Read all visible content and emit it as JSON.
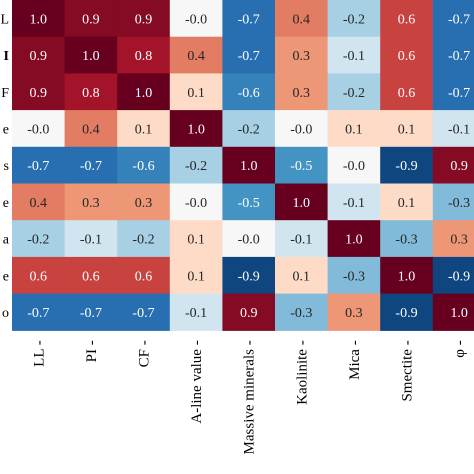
{
  "chart_data": {
    "type": "heatmap",
    "x_labels": [
      "LL",
      "PI",
      "CF",
      "A-line value",
      "Massive minerals",
      "Kaolinite",
      "Mica",
      "Smectite",
      "φ"
    ],
    "y_labels": [
      "LL",
      "PI",
      "CF",
      "A-line value",
      "Massive minerals",
      "Kaolinite",
      "Mica",
      "Smectite",
      "φ"
    ],
    "y_labels_visible_fragments": [
      "L",
      "I",
      "F",
      "e",
      "s",
      "e",
      "a",
      "e",
      "o"
    ],
    "values": [
      [
        1.0,
        0.9,
        0.9,
        -0.0,
        -0.7,
        0.4,
        -0.2,
        0.6,
        -0.7
      ],
      [
        0.9,
        1.0,
        0.8,
        0.4,
        -0.7,
        0.3,
        -0.1,
        0.6,
        -0.7
      ],
      [
        0.9,
        0.8,
        1.0,
        0.1,
        -0.6,
        0.3,
        -0.2,
        0.6,
        -0.7
      ],
      [
        -0.0,
        0.4,
        0.1,
        1.0,
        -0.2,
        -0.0,
        0.1,
        0.1,
        -0.1
      ],
      [
        -0.7,
        -0.7,
        -0.6,
        -0.2,
        1.0,
        -0.5,
        -0.0,
        -0.9,
        0.9
      ],
      [
        0.4,
        0.3,
        0.3,
        -0.0,
        -0.5,
        1.0,
        -0.1,
        0.1,
        -0.3
      ],
      [
        -0.2,
        -0.1,
        -0.2,
        0.1,
        -0.0,
        -0.1,
        1.0,
        -0.3,
        0.3
      ],
      [
        0.6,
        0.6,
        0.6,
        0.1,
        -0.9,
        0.1,
        -0.3,
        1.0,
        -0.9
      ],
      [
        -0.7,
        -0.7,
        -0.7,
        -0.1,
        0.9,
        -0.3,
        0.3,
        -0.9,
        1.0
      ]
    ],
    "cell_text": [
      [
        "1.0",
        "0.9",
        "0.9",
        "-0.0",
        "-0.7",
        "0.4",
        "-0.2",
        "0.6",
        "-0.7"
      ],
      [
        "0.9",
        "1.0",
        "0.8",
        "0.4",
        "-0.7",
        "0.3",
        "-0.1",
        "0.6",
        "-0.7"
      ],
      [
        "0.9",
        "0.8",
        "1.0",
        "0.1",
        "-0.6",
        "0.3",
        "-0.2",
        "0.6",
        "-0.7"
      ],
      [
        "-0.0",
        "0.4",
        "0.1",
        "1.0",
        "-0.2",
        "-0.0",
        "0.1",
        "0.1",
        "-0.1"
      ],
      [
        "-0.7",
        "-0.7",
        "-0.6",
        "-0.2",
        "1.0",
        "-0.5",
        "-0.0",
        "-0.9",
        "0.9"
      ],
      [
        "0.4",
        "0.3",
        "0.3",
        "-0.0",
        "-0.5",
        "1.0",
        "-0.1",
        "0.1",
        "-0.3"
      ],
      [
        "-0.2",
        "-0.1",
        "-0.2",
        "0.1",
        "-0.0",
        "-0.1",
        "1.0",
        "-0.3",
        "0.3"
      ],
      [
        "0.6",
        "0.6",
        "0.6",
        "0.1",
        "-0.9",
        "0.1",
        "-0.3",
        "1.0",
        "-0.9"
      ],
      [
        "-0.7",
        "-0.7",
        "-0.7",
        "-0.1",
        "0.9",
        "-0.3",
        "0.3",
        "-0.9",
        "1.0"
      ]
    ],
    "value_range": [
      -1,
      1
    ],
    "colormap": "RdBu_r",
    "colors": {
      "negative_max": "#053061",
      "neutral": "#f7f7f7",
      "positive_max": "#67001f",
      "light_text": "#ffffff",
      "dark_text": "#262626"
    },
    "grid": false,
    "legend": "none"
  }
}
